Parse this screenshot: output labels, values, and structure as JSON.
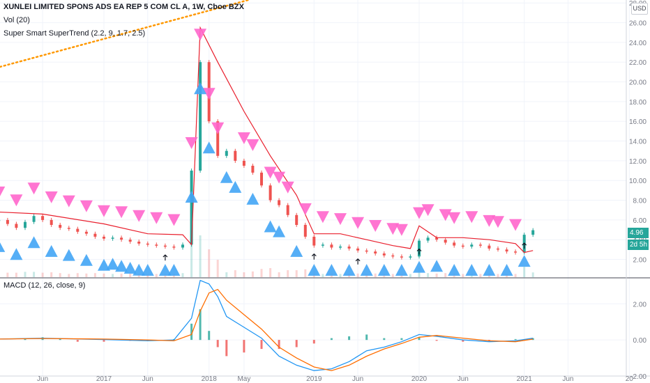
{
  "legend": {
    "title": "XUNLEI LIMITED SPONS ADS EA REP 5 COM CL A, 1W, Cboe BZX",
    "volume": "Vol (20)",
    "supertrend": "Super Smart SuperTrend (2.2, 9, 1.7, 2.5)",
    "macd": "MACD (12, 26, close, 9)"
  },
  "currency": "USD",
  "price_tag": "4.96",
  "time_tag": "2d 5h",
  "colors": {
    "up": "#26a69a",
    "down": "#ef5350",
    "supertrend_up": "#4caf50",
    "supertrend_down": "#e91e2c",
    "signal_sell": "#ff66cc",
    "signal_buy": "#42a5f5",
    "trendline": "#ff9800",
    "macd_line": "#2196f3",
    "signal_line": "#ff6d00",
    "tag": "#26a69a"
  },
  "chart_data": [
    {
      "type": "line",
      "title": "XUNLEI LIMITED SPONS ADS EA REP 5 COM CL A, 1W, Cboe BZX",
      "x_ticks": [
        "Jun",
        "2017",
        "Jun",
        "2018",
        "May",
        "2019",
        "Jun",
        "2020",
        "Jun",
        "2021",
        "Jun",
        "20"
      ],
      "x_tick_dates": [
        "2016-06",
        "2017-01",
        "2017-06",
        "2018-01",
        "2018-05",
        "2019-01",
        "2019-06",
        "2020-01",
        "2020-06",
        "2021-01",
        "2021-06",
        "2022-01"
      ],
      "y_ticks": [
        2,
        4,
        6,
        8,
        10,
        12,
        14,
        16,
        18,
        20,
        22,
        24,
        26,
        28
      ],
      "y_tick_labels": [
        "2.00",
        "4.00",
        "6.00",
        "8.00",
        "10.00",
        "12.00",
        "14.00",
        "16.00",
        "18.00",
        "20.00",
        "22.00",
        "24.00",
        "26.00",
        "28.00"
      ],
      "ylim": [
        0.2,
        28.3
      ],
      "grid": true,
      "series": [
        {
          "role": "price",
          "x": [
            "2016-01",
            "2016-02",
            "2016-03",
            "2016-04",
            "2016-05",
            "2016-06",
            "2016-07",
            "2016-08",
            "2016-09",
            "2016-10",
            "2016-11",
            "2016-12",
            "2017-01",
            "2017-02",
            "2017-03",
            "2017-04",
            "2017-05",
            "2017-06",
            "2017-07",
            "2017-08",
            "2017-09",
            "2017-10",
            "2017-11",
            "2017-12",
            "2018-01",
            "2018-02",
            "2018-03",
            "2018-04",
            "2018-05",
            "2018-06",
            "2018-07",
            "2018-08",
            "2018-09",
            "2018-10",
            "2018-11",
            "2018-12",
            "2019-01",
            "2019-02",
            "2019-03",
            "2019-04",
            "2019-05",
            "2019-06",
            "2019-07",
            "2019-08",
            "2019-09",
            "2019-10",
            "2019-11",
            "2019-12",
            "2020-01",
            "2020-02",
            "2020-03",
            "2020-04",
            "2020-05",
            "2020-06",
            "2020-07",
            "2020-08",
            "2020-09",
            "2020-10",
            "2020-11",
            "2020-12",
            "2021-01",
            "2021-02"
          ],
          "values": [
            6.0,
            5.6,
            5.2,
            5.8,
            6.4,
            6.0,
            5.5,
            5.2,
            5.1,
            4.8,
            4.6,
            4.3,
            4.1,
            4.2,
            4.0,
            3.8,
            3.6,
            3.5,
            3.4,
            3.3,
            3.2,
            3.5,
            11.0,
            22.0,
            16.0,
            12.5,
            13.0,
            12.0,
            11.5,
            10.8,
            9.5,
            8.0,
            7.5,
            6.5,
            5.5,
            4.3,
            3.4,
            3.5,
            3.2,
            3.3,
            3.1,
            2.9,
            2.8,
            2.6,
            2.4,
            2.3,
            2.2,
            2.3,
            3.9,
            4.2,
            4.0,
            3.7,
            3.4,
            3.3,
            3.5,
            3.4,
            3.1,
            3.0,
            2.8,
            2.7,
            4.5,
            4.96
          ]
        },
        {
          "role": "supertrend",
          "x": [
            "2016-01",
            "2016-06",
            "2017-01",
            "2017-06",
            "2017-10",
            "2017-11",
            "2017-12",
            "2018-02",
            "2018-05",
            "2018-08",
            "2018-11",
            "2019-01",
            "2019-04",
            "2019-07",
            "2019-10",
            "2019-12",
            "2020-01",
            "2020-03",
            "2020-06",
            "2020-09",
            "2020-12",
            "2021-01",
            "2021-02"
          ],
          "values": [
            6.8,
            6.6,
            5.6,
            4.6,
            4.5,
            3.5,
            25.5,
            22.0,
            17.0,
            12.5,
            8.5,
            4.6,
            4.6,
            4.0,
            3.4,
            3.1,
            5.4,
            4.2,
            4.2,
            4.0,
            3.6,
            2.7,
            2.9
          ]
        }
      ],
      "sell_signals": [
        "2016-01",
        "2016-03",
        "2016-05",
        "2016-07",
        "2016-09",
        "2016-11",
        "2017-01",
        "2017-03",
        "2017-05",
        "2017-07",
        "2017-09",
        "2017-11",
        "2017-12",
        "2018-01",
        "2018-02",
        "2018-05",
        "2018-06",
        "2018-08",
        "2018-09",
        "2018-10",
        "2018-12",
        "2019-02",
        "2019-04",
        "2019-06",
        "2019-08",
        "2019-10",
        "2019-11",
        "2020-01",
        "2020-02",
        "2020-04",
        "2020-05",
        "2020-07",
        "2020-09",
        "2020-10",
        "2020-12"
      ],
      "buy_signals": [
        "2016-01",
        "2016-03",
        "2016-05",
        "2016-07",
        "2016-09",
        "2016-11",
        "2017-01",
        "2017-02",
        "2017-03",
        "2017-04",
        "2017-05",
        "2017-06",
        "2017-08",
        "2017-09",
        "2017-11",
        "2017-12",
        "2018-01",
        "2018-03",
        "2018-04",
        "2018-06",
        "2018-08",
        "2018-09",
        "2018-11",
        "2019-01",
        "2019-03",
        "2019-05",
        "2019-07",
        "2019-09",
        "2019-11",
        "2020-01",
        "2020-03",
        "2020-05",
        "2020-07",
        "2020-09",
        "2020-11",
        "2021-01"
      ],
      "arrow_markers": [
        "2017-08",
        "2019-01",
        "2019-06",
        "2020-01",
        "2021-01"
      ]
    },
    {
      "type": "bar",
      "title": "MACD (12, 26, close, 9)",
      "y_ticks": [
        -2,
        0,
        2
      ],
      "y_tick_labels": [
        "-2.00",
        "0.00",
        "2.00"
      ],
      "ylim": [
        -2.0,
        3.4
      ],
      "grid": true,
      "series": [
        {
          "name": "MACD",
          "x": [
            "2016-01",
            "2016-06",
            "2017-01",
            "2017-06",
            "2017-09",
            "2017-11",
            "2017-12",
            "2018-01",
            "2018-02",
            "2018-03",
            "2018-05",
            "2018-07",
            "2018-09",
            "2018-11",
            "2019-01",
            "2019-03",
            "2019-05",
            "2019-07",
            "2019-09",
            "2019-11",
            "2020-01",
            "2020-03",
            "2020-06",
            "2020-09",
            "2020-12",
            "2021-02"
          ],
          "values": [
            0.05,
            0.1,
            0.02,
            -0.05,
            0.0,
            1.2,
            3.3,
            3.1,
            2.4,
            1.3,
            0.7,
            0.1,
            -0.9,
            -1.4,
            -1.7,
            -1.6,
            -1.2,
            -0.6,
            -0.4,
            -0.1,
            0.3,
            0.2,
            0.0,
            -0.1,
            -0.05,
            0.1
          ]
        },
        {
          "name": "Signal",
          "x": [
            "2016-01",
            "2016-06",
            "2017-01",
            "2017-06",
            "2017-09",
            "2017-11",
            "2017-12",
            "2018-01",
            "2018-02",
            "2018-03",
            "2018-05",
            "2018-07",
            "2018-09",
            "2018-11",
            "2019-01",
            "2019-03",
            "2019-05",
            "2019-07",
            "2019-09",
            "2019-11",
            "2020-01",
            "2020-03",
            "2020-06",
            "2020-09",
            "2020-12",
            "2021-02"
          ],
          "values": [
            0.05,
            0.08,
            0.05,
            0.0,
            -0.05,
            0.3,
            1.6,
            2.6,
            2.8,
            2.2,
            1.4,
            0.6,
            -0.4,
            -1.0,
            -1.5,
            -1.7,
            -1.4,
            -0.9,
            -0.5,
            -0.2,
            0.15,
            0.25,
            0.1,
            -0.05,
            -0.1,
            0.05
          ]
        },
        {
          "name": "Histogram",
          "x": [
            "2016-01",
            "2016-04",
            "2016-06",
            "2016-08",
            "2016-10",
            "2017-01",
            "2017-04",
            "2017-06",
            "2017-09",
            "2017-11",
            "2017-12",
            "2018-01",
            "2018-02",
            "2018-03",
            "2018-05",
            "2018-07",
            "2018-09",
            "2018-11",
            "2019-01",
            "2019-03",
            "2019-05",
            "2019-07",
            "2019-09",
            "2019-11",
            "2020-01",
            "2020-03",
            "2020-06",
            "2020-09",
            "2020-12",
            "2021-02"
          ],
          "values": [
            0.0,
            0.05,
            0.15,
            0.1,
            -0.1,
            -0.1,
            -0.05,
            -0.05,
            0.05,
            0.9,
            1.7,
            0.5,
            -0.4,
            -0.9,
            -0.7,
            -0.5,
            -0.5,
            -0.4,
            -0.2,
            0.1,
            0.2,
            0.3,
            0.1,
            0.1,
            0.15,
            -0.05,
            -0.1,
            -0.05,
            0.05,
            0.1
          ]
        }
      ]
    }
  ]
}
